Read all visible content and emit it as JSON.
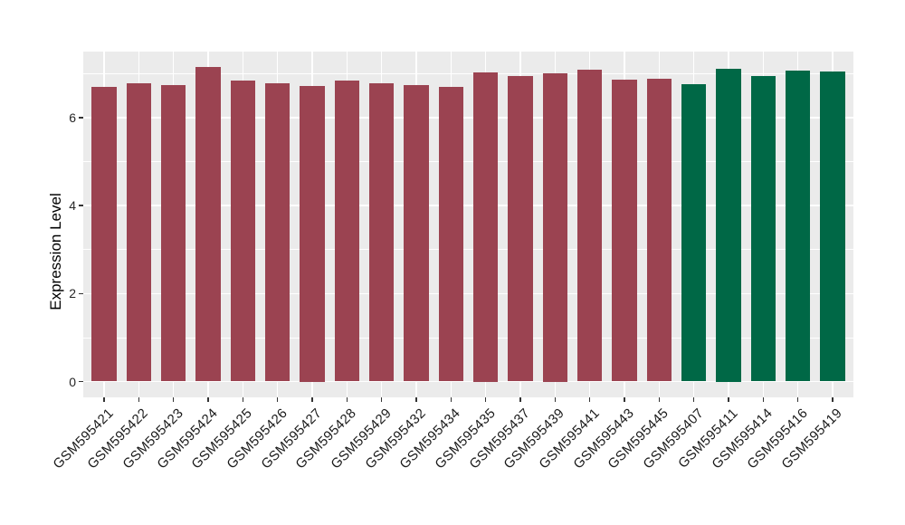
{
  "chart_data": {
    "type": "bar",
    "title": "",
    "xlabel": "",
    "ylabel": "Expression Level",
    "ylim": [
      0,
      7.5
    ],
    "yticks": [
      0,
      2,
      4,
      6
    ],
    "yticks_minor": [
      1,
      3,
      5,
      7
    ],
    "grid": true,
    "legend_position": "none",
    "panel_background": "#EBEBEB",
    "gridline_color": "#FFFFFF",
    "tick_mark_color": "#333333",
    "axis_text_color": "#1A1A1A",
    "group_colors": {
      "group1": "#9B4351",
      "group2": "#006846"
    },
    "categories": [
      "GSM595421",
      "GSM595422",
      "GSM595423",
      "GSM595424",
      "GSM595425",
      "GSM595426",
      "GSM595427",
      "GSM595428",
      "GSM595429",
      "GSM595432",
      "GSM595434",
      "GSM595435",
      "GSM595437",
      "GSM595439",
      "GSM595441",
      "GSM595443",
      "GSM595445",
      "GSM595407",
      "GSM595411",
      "GSM595414",
      "GSM595416",
      "GSM595419"
    ],
    "values": [
      6.69,
      6.78,
      6.74,
      7.15,
      6.85,
      6.77,
      6.72,
      6.84,
      6.78,
      6.74,
      6.69,
      7.02,
      6.95,
      7.0,
      7.08,
      6.86,
      6.88,
      6.75,
      7.11,
      6.95,
      7.07,
      7.04
    ],
    "groups": [
      "group1",
      "group1",
      "group1",
      "group1",
      "group1",
      "group1",
      "group1",
      "group1",
      "group1",
      "group1",
      "group1",
      "group1",
      "group1",
      "group1",
      "group1",
      "group1",
      "group1",
      "group2",
      "group2",
      "group2",
      "group2",
      "group2"
    ],
    "ytick_labels": [
      "0",
      "2",
      "4",
      "6"
    ]
  }
}
